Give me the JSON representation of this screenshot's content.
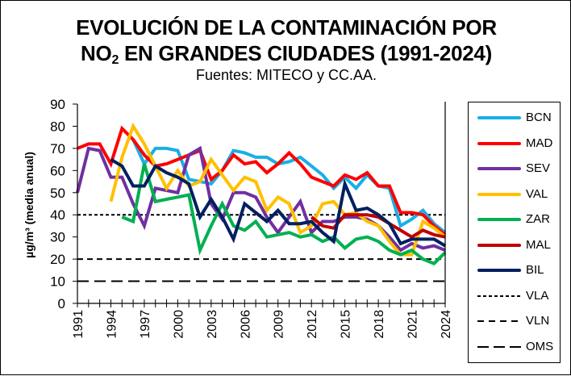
{
  "chart_data": {
    "type": "line",
    "title": "EVOLUCIÓN DE LA CONTAMINACIÓN POR NO2 EN GRANDES CIUDADES (1991-2024)",
    "title_line1": "EVOLUCIÓN DE LA CONTAMINACIÓN POR",
    "title_line2_prefix": "NO",
    "title_line2_sub": "2",
    "title_line2_suffix": " EN GRANDES CIUDADES (1991-2024)",
    "subtitle": "Fuentes: MITECO y CC.AA.",
    "xlabel": "",
    "ylabel": "µg/m³ (media anual)",
    "ylim": [
      0,
      90
    ],
    "yticks": [
      0,
      10,
      20,
      30,
      40,
      50,
      60,
      70,
      80,
      90
    ],
    "xlim": [
      1991,
      2024
    ],
    "xtick_labels": [
      "1991",
      "1994",
      "1997",
      "2000",
      "2003",
      "2006",
      "2009",
      "2012",
      "2015",
      "2018",
      "2021",
      "2024"
    ],
    "grid": false,
    "legend_position": "right",
    "x": [
      1991,
      1992,
      1993,
      1994,
      1995,
      1996,
      1997,
      1998,
      1999,
      2000,
      2001,
      2002,
      2003,
      2004,
      2005,
      2006,
      2007,
      2008,
      2009,
      2010,
      2011,
      2012,
      2013,
      2014,
      2015,
      2016,
      2017,
      2018,
      2019,
      2020,
      2021,
      2022,
      2023,
      2024
    ],
    "series": [
      {
        "name": "BCN",
        "color": "#1AAFE6",
        "style": "solid",
        "values": [
          null,
          null,
          null,
          null,
          null,
          74,
          63,
          70,
          70,
          69,
          56,
          55,
          54,
          60,
          69,
          68,
          66,
          66,
          63,
          64,
          66,
          62,
          58,
          52,
          57,
          52,
          58,
          53,
          52,
          35,
          38,
          42,
          36,
          32
        ]
      },
      {
        "name": "MAD",
        "color": "#FF0000",
        "style": "solid",
        "values": [
          70,
          72,
          72,
          63,
          79,
          74,
          67,
          62,
          63,
          65,
          67,
          69,
          56,
          60,
          67,
          63,
          64,
          59,
          63,
          68,
          63,
          57,
          55,
          53,
          58,
          56,
          59,
          53,
          53,
          41,
          41,
          40,
          35,
          31
        ]
      },
      {
        "name": "SEV",
        "color": "#7030A0",
        "style": "solid",
        "values": [
          50,
          70,
          69,
          57,
          57,
          45,
          35,
          52,
          51,
          50,
          67,
          70,
          45,
          38,
          50,
          50,
          48,
          39,
          32,
          39,
          46,
          32,
          37,
          37,
          39,
          39,
          38,
          35,
          30,
          24,
          27,
          25,
          26,
          24
        ]
      },
      {
        "name": "VAL",
        "color": "#FFC000",
        "style": "solid",
        "values": [
          null,
          null,
          null,
          46,
          66,
          80,
          72,
          62,
          52,
          60,
          53,
          55,
          65,
          58,
          51,
          57,
          55,
          42,
          48,
          45,
          32,
          35,
          45,
          46,
          40,
          41,
          37,
          35,
          28,
          22,
          22,
          37,
          34,
          30
        ]
      },
      {
        "name": "ZAR",
        "color": "#00B050",
        "style": "solid",
        "values": [
          null,
          null,
          null,
          null,
          39,
          37,
          63,
          46,
          47,
          48,
          49,
          24,
          35,
          45,
          35,
          33,
          37,
          30,
          31,
          32,
          30,
          31,
          28,
          30,
          25,
          29,
          30,
          28,
          24,
          22,
          24,
          20,
          18,
          23
        ]
      },
      {
        "name": "MAL",
        "color": "#C00000",
        "style": "solid",
        "values": [
          null,
          null,
          null,
          null,
          null,
          null,
          null,
          null,
          null,
          null,
          null,
          null,
          null,
          null,
          null,
          null,
          null,
          null,
          null,
          null,
          null,
          39,
          35,
          34,
          40,
          40,
          40,
          39,
          36,
          33,
          30,
          33,
          31,
          30
        ]
      },
      {
        "name": "BIL",
        "color": "#002060",
        "style": "solid",
        "values": [
          null,
          null,
          null,
          65,
          62,
          53,
          53,
          62,
          59,
          57,
          54,
          39,
          47,
          39,
          29,
          45,
          41,
          37,
          42,
          36,
          36,
          37,
          32,
          28,
          54,
          42,
          43,
          40,
          36,
          27,
          29,
          29,
          29,
          26
        ]
      },
      {
        "name": "VLA",
        "color": "#000000",
        "style": "dotted",
        "values_constant": 40
      },
      {
        "name": "VLN",
        "color": "#000000",
        "style": "dashed",
        "values_constant": 20
      },
      {
        "name": "OMS",
        "color": "#000000",
        "style": "longdash",
        "values_constant": 10
      }
    ]
  }
}
